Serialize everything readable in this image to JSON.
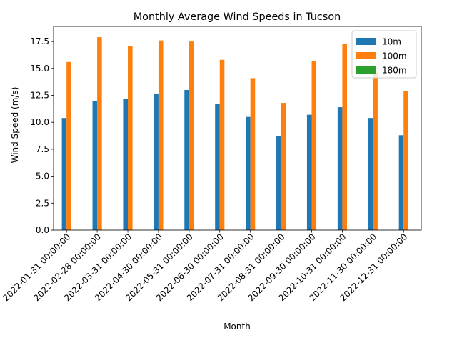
{
  "chart_data": {
    "type": "bar",
    "title": "Monthly Average Wind Speeds in Tucson",
    "xlabel": "Month",
    "ylabel": "Wind Speed (m/s)",
    "ylim": [
      0,
      18.9
    ],
    "yticks": [
      "0.0",
      "2.5",
      "5.0",
      "7.5",
      "10.0",
      "12.5",
      "15.0",
      "17.5"
    ],
    "categories": [
      "2022-01-31 00:00:00",
      "2022-02-28 00:00:00",
      "2022-03-31 00:00:00",
      "2022-04-30 00:00:00",
      "2022-05-31 00:00:00",
      "2022-06-30 00:00:00",
      "2022-07-31 00:00:00",
      "2022-08-31 00:00:00",
      "2022-09-30 00:00:00",
      "2022-10-31 00:00:00",
      "2022-11-30 00:00:00",
      "2022-12-31 00:00:00"
    ],
    "series": [
      {
        "name": "10m",
        "color": "#1f77b4",
        "values": [
          10.4,
          12.0,
          12.2,
          12.6,
          13.0,
          11.7,
          10.5,
          8.7,
          10.7,
          11.4,
          10.4,
          8.8
        ]
      },
      {
        "name": "100m",
        "color": "#ff7f0e",
        "values": [
          15.6,
          17.9,
          17.1,
          17.6,
          17.5,
          15.8,
          14.1,
          11.8,
          15.7,
          17.3,
          14.6,
          12.9
        ]
      },
      {
        "name": "180m",
        "color": "#2ca02c",
        "values": [
          0,
          0,
          0,
          0,
          0,
          0,
          0,
          0,
          0,
          0,
          0,
          0
        ]
      }
    ],
    "legend_position": "top-right",
    "grid": false
  }
}
